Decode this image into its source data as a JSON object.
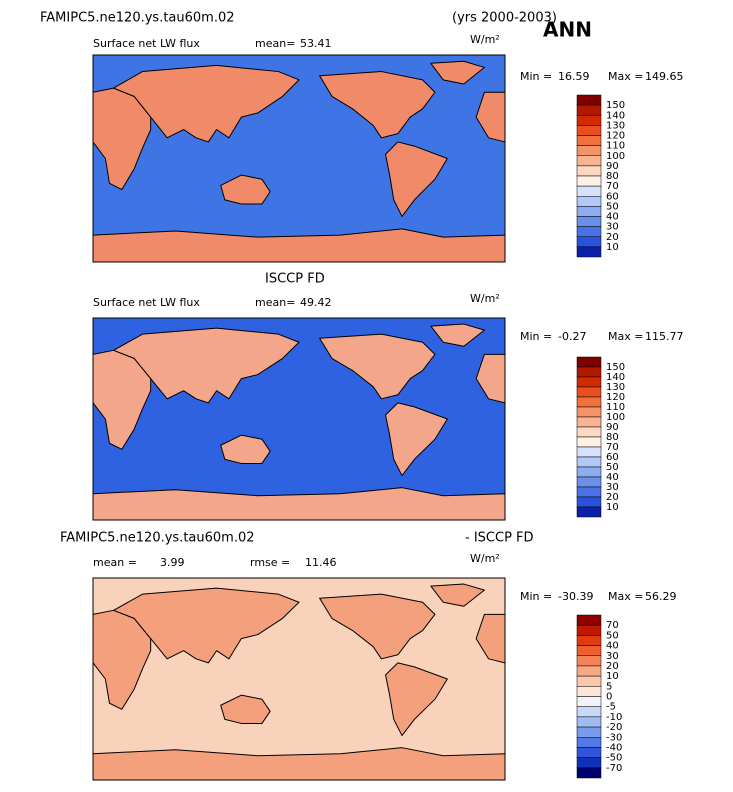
{
  "header": {
    "title": "FAMIPC5.ne120.ys.tau60m.02",
    "years": "(yrs 2000-2003)",
    "season": "ANN"
  },
  "middle_title": "ISCCP FD",
  "diff_title": {
    "left": "FAMIPC5.ne120.ys.tau60m.02",
    "right": "- ISCCP FD"
  },
  "panels": [
    {
      "field": "Surface net LW flux",
      "mean_label": "mean=",
      "mean": 53.41,
      "units": "W/m²",
      "min_label": "Min =",
      "min": 16.59,
      "max_label": "Max =",
      "max": 149.65,
      "map_color": "#3f74e4",
      "land_color": "#f08a68",
      "colorbar": {
        "levels": [
          150,
          140,
          130,
          120,
          110,
          100,
          90,
          80,
          70,
          60,
          50,
          40,
          30,
          20,
          10
        ],
        "colors": [
          "#800000",
          "#b01800",
          "#d42a00",
          "#e84e1e",
          "#f0703e",
          "#f49268",
          "#f8b492",
          "#fcd8c2",
          "#fdf0e4",
          "#d6e2fa",
          "#b2c8f6",
          "#8eadf0",
          "#6a90ec",
          "#4a72e6",
          "#2a52dc",
          "#0a20a8"
        ]
      }
    },
    {
      "field": "Surface net LW flux",
      "mean_label": "mean=",
      "mean": 49.42,
      "units": "W/m²",
      "min_label": "Min =",
      "min": -0.27,
      "max_label": "Max =",
      "max": 115.77,
      "map_color": "#2f62e0",
      "land_color": "#f4a68a",
      "colorbar": {
        "levels": [
          150,
          140,
          130,
          120,
          110,
          100,
          90,
          80,
          70,
          60,
          50,
          40,
          30,
          20,
          10
        ],
        "colors": [
          "#800000",
          "#b01800",
          "#d42a00",
          "#e84e1e",
          "#f0703e",
          "#f49268",
          "#f8b492",
          "#fcd8c2",
          "#fdf0e4",
          "#d6e2fa",
          "#b2c8f6",
          "#8eadf0",
          "#6a90ec",
          "#4a72e6",
          "#2a52dc",
          "#0a20a8"
        ]
      }
    },
    {
      "mean_label": "mean =",
      "mean": 3.99,
      "rmse_label": "rmse =",
      "rmse": 11.46,
      "units": "W/m²",
      "min_label": "Min =",
      "min": -30.39,
      "max_label": "Max =",
      "max": 56.29,
      "map_color": "#f9d2bc",
      "land_color": "#f4a07c",
      "colorbar": {
        "levels": [
          70,
          50,
          40,
          30,
          20,
          10,
          5,
          0,
          -5,
          -10,
          -20,
          -30,
          -40,
          -50,
          -70
        ],
        "colors": [
          "#900000",
          "#c01800",
          "#e03c10",
          "#ee6030",
          "#f48458",
          "#f8a882",
          "#fbc8ac",
          "#fde6d6",
          "#f2f2fa",
          "#c8d8f8",
          "#a0bcf2",
          "#7a9cee",
          "#5478e8",
          "#3054dc",
          "#1030b8",
          "#00006e"
        ]
      }
    }
  ]
}
